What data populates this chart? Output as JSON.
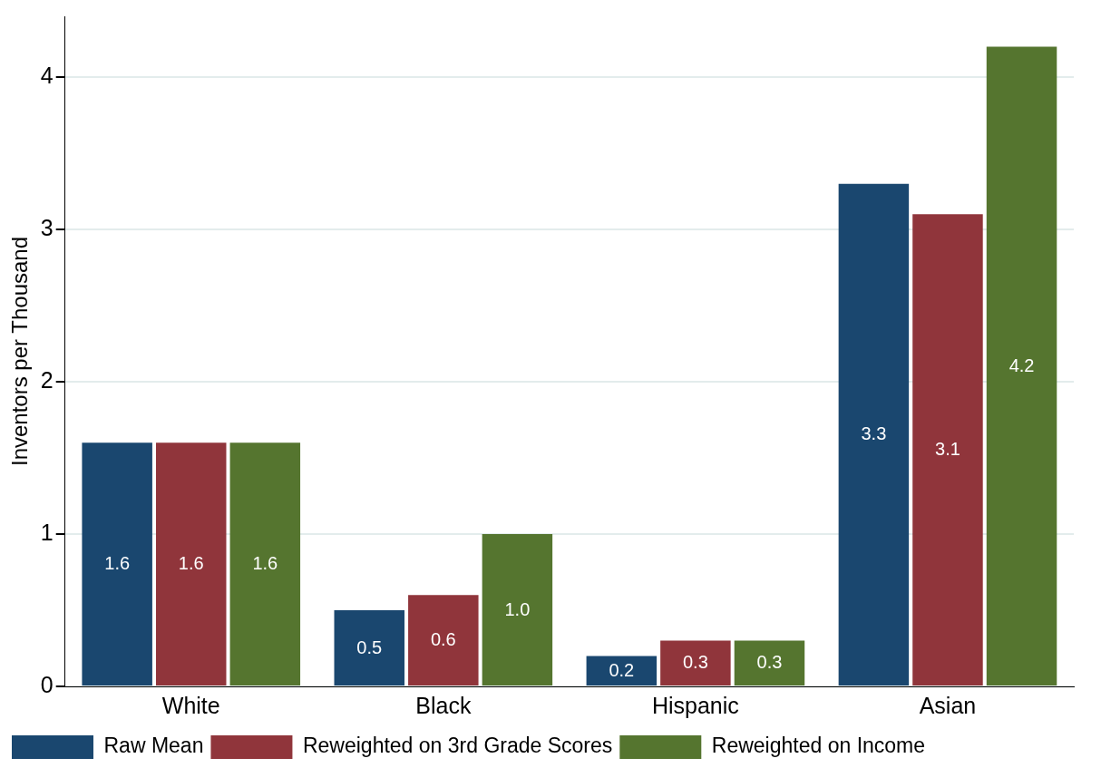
{
  "chart_data": {
    "type": "bar",
    "ylabel": "Inventors per Thousand",
    "categories": [
      "White",
      "Black",
      "Hispanic",
      "Asian"
    ],
    "series": [
      {
        "name": "Raw Mean",
        "color": "#1a476f",
        "values": [
          1.6,
          0.5,
          0.2,
          3.3
        ],
        "value_labels": [
          "1.6",
          "0.5",
          "0.2",
          "3.3"
        ]
      },
      {
        "name": "Reweighted on 3rd Grade Scores",
        "color": "#90353b",
        "values": [
          1.6,
          0.6,
          0.3,
          3.1
        ],
        "value_labels": [
          "1.6",
          "0.6",
          "0.3",
          "3.1"
        ]
      },
      {
        "name": "Reweighted on Income",
        "color": "#55752f",
        "values": [
          1.6,
          1.0,
          0.3,
          4.2
        ],
        "value_labels": [
          "1.6",
          "1.0",
          "0.3",
          "4.2"
        ]
      }
    ],
    "ylim": [
      0,
      4.4
    ],
    "yticks": [
      0,
      1,
      2,
      3,
      4
    ],
    "grid": "y",
    "legend": "bottom"
  }
}
